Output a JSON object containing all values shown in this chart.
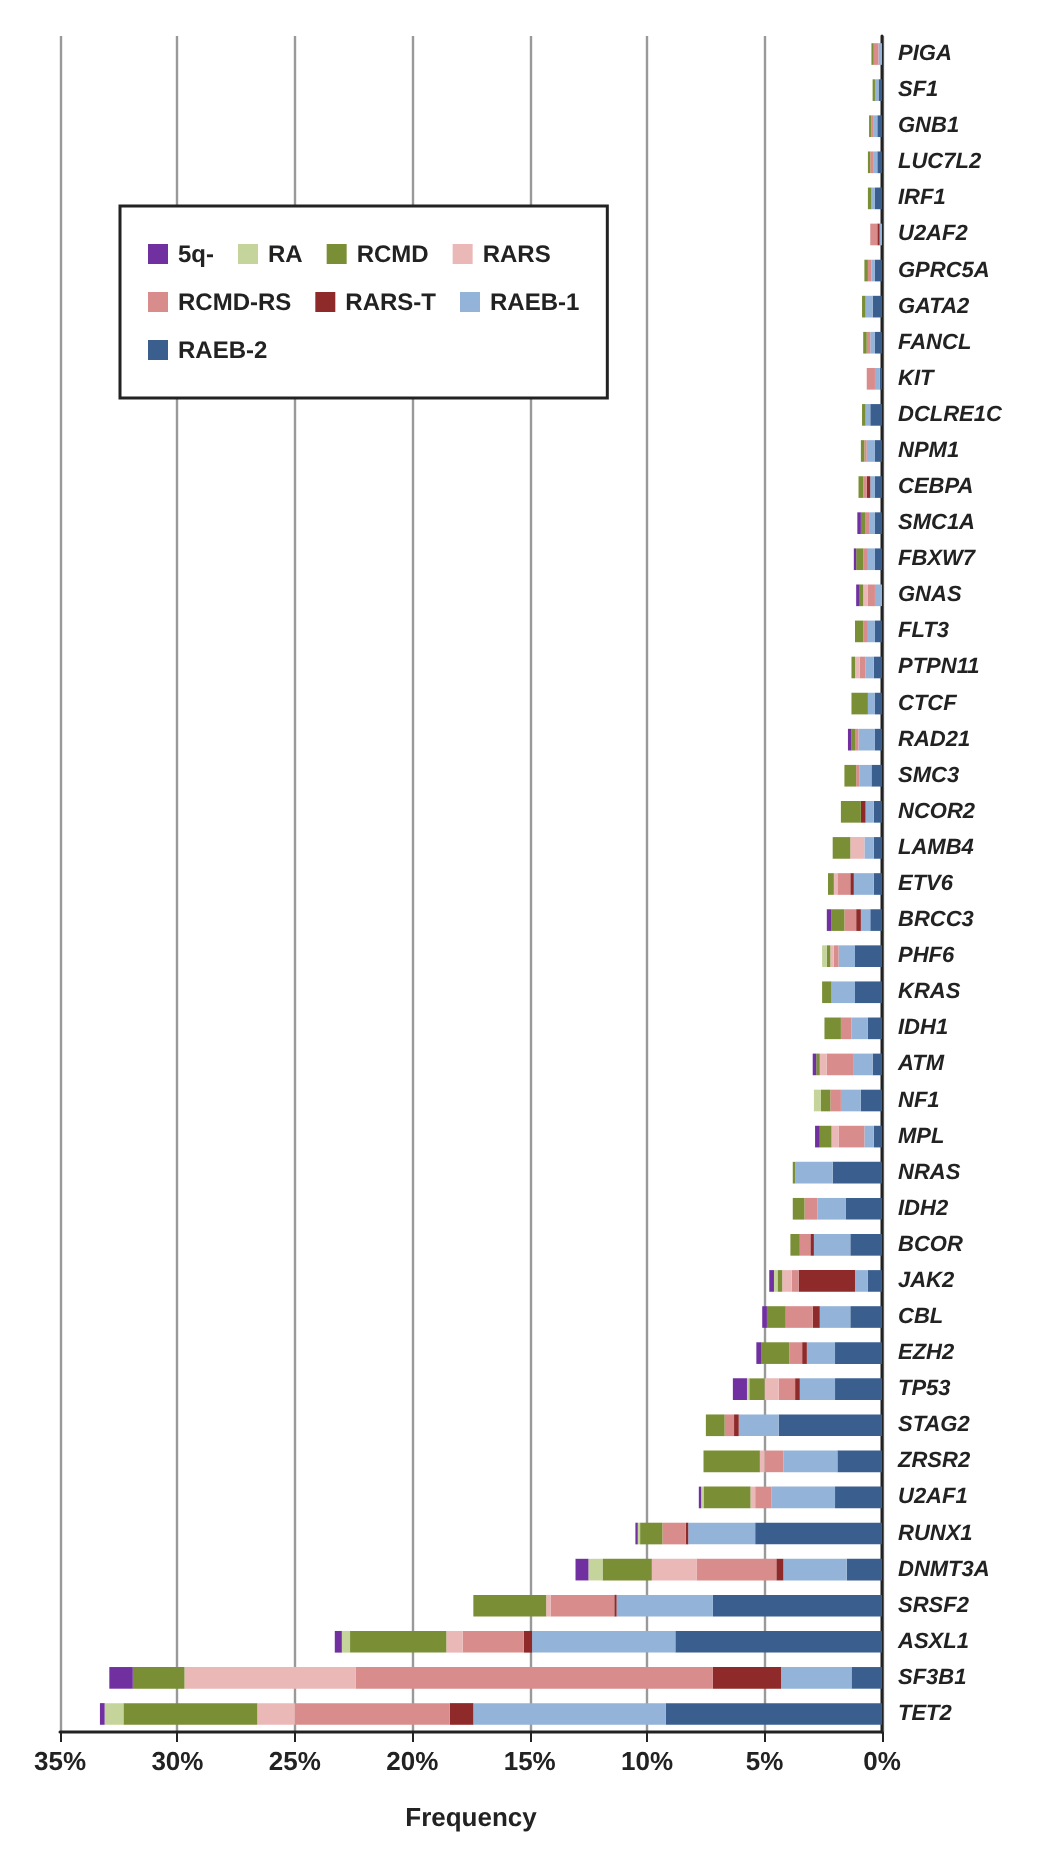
{
  "chart_data": {
    "type": "bar",
    "orientation": "horizontal",
    "stacked": true,
    "xlabel": "Frequency",
    "grid": "x",
    "legend": "top left",
    "xlim": [
      35,
      0
    ],
    "xticks": [
      {
        "value": 35,
        "label": "35%"
      },
      {
        "value": 30,
        "label": "30%"
      },
      {
        "value": 25,
        "label": "25%"
      },
      {
        "value": 20,
        "label": "20%"
      },
      {
        "value": 15,
        "label": "15%"
      },
      {
        "value": 10,
        "label": "10%"
      },
      {
        "value": 5,
        "label": "5%"
      },
      {
        "value": 0,
        "label": "0%"
      }
    ],
    "categories": [
      "PIGA",
      "SF1",
      "GNB1",
      "LUC7L2",
      "IRF1",
      "U2AF2",
      "GPRC5A",
      "GATA2",
      "FANCL",
      "KIT",
      "DCLRE1C",
      "NPM1",
      "CEBPA",
      "SMC1A",
      "FBXW7",
      "GNAS",
      "FLT3",
      "PTPN11",
      "CTCF",
      "RAD21",
      "SMC3",
      "NCOR2",
      "LAMB4",
      "ETV6",
      "BRCC3",
      "PHF6",
      "KRAS",
      "IDH1",
      "ATM",
      "NF1",
      "MPL",
      "NRAS",
      "IDH2",
      "BCOR",
      "JAK2",
      "CBL",
      "EZH2",
      "TP53",
      "STAG2",
      "ZRSR2",
      "U2AF1",
      "RUNX1",
      "DNMT3A",
      "SRSF2",
      "ASXL1",
      "SF3B1",
      "TET2"
    ],
    "series": [
      {
        "name": "RAEB-2",
        "color": "#3a5f8f",
        "values": [
          0,
          0.15,
          0.2,
          0.2,
          0.3,
          0,
          0.3,
          0.4,
          0.3,
          0.1,
          0.5,
          0.3,
          0.3,
          0.3,
          0.3,
          0,
          0.3,
          0.35,
          0.3,
          0.3,
          0.45,
          0.35,
          0.35,
          0.35,
          0.5,
          1.15,
          1.15,
          0.6,
          0.4,
          0.9,
          0.35,
          2.1,
          1.55,
          1.35,
          0.6,
          1.35,
          2.0,
          2.0,
          4.4,
          1.9,
          2.0,
          5.4,
          1.5,
          7.2,
          8.8,
          1.3,
          9.2
        ]
      },
      {
        "name": "RAEB-1",
        "color": "#93b3d8",
        "values": [
          0.15,
          0.15,
          0.15,
          0.15,
          0.15,
          0.1,
          0.15,
          0.3,
          0.2,
          0.2,
          0.2,
          0.35,
          0.2,
          0.25,
          0.3,
          0.3,
          0.3,
          0.35,
          0.3,
          0.7,
          0.5,
          0.35,
          0.4,
          0.85,
          0.4,
          0.7,
          1.0,
          0.7,
          0.8,
          0.85,
          0.4,
          1.6,
          1.2,
          1.55,
          0.55,
          1.3,
          1.2,
          1.5,
          1.7,
          2.3,
          2.7,
          2.85,
          2.7,
          4.1,
          6.1,
          3.0,
          8.2
        ]
      },
      {
        "name": "RARS-T",
        "color": "#8e2a2a",
        "values": [
          0,
          0,
          0,
          0,
          0,
          0.1,
          0,
          0,
          0,
          0,
          0,
          0,
          0.15,
          0,
          0,
          0,
          0,
          0,
          0,
          0,
          0,
          0.2,
          0,
          0.15,
          0.2,
          0,
          0,
          0,
          0,
          0,
          0,
          0,
          0,
          0.15,
          2.4,
          0.3,
          0.2,
          0.2,
          0.2,
          0,
          0,
          0.1,
          0.3,
          0.1,
          0.35,
          2.9,
          1.0
        ]
      },
      {
        "name": "RCMD-RS",
        "color": "#d98c8c",
        "values": [
          0.2,
          0,
          0.1,
          0.15,
          0,
          0.3,
          0.15,
          0,
          0.15,
          0.35,
          0,
          0.1,
          0.15,
          0.15,
          0.2,
          0.3,
          0.2,
          0.25,
          0,
          0.15,
          0.15,
          0,
          0,
          0.55,
          0.5,
          0.2,
          0,
          0.45,
          1.15,
          0.45,
          1.1,
          0,
          0.55,
          0.45,
          0.3,
          1.15,
          0.55,
          0.7,
          0.4,
          0.8,
          0.7,
          1.0,
          3.4,
          2.7,
          2.6,
          15.2,
          6.6
        ]
      },
      {
        "name": "RARS",
        "color": "#ebb8b8",
        "values": [
          0,
          0,
          0,
          0,
          0,
          0,
          0,
          0,
          0,
          0,
          0,
          0,
          0,
          0,
          0,
          0.2,
          0,
          0.2,
          0,
          0,
          0,
          0,
          0.6,
          0.15,
          0,
          0.15,
          0,
          0,
          0.3,
          0,
          0.3,
          0,
          0,
          0,
          0.4,
          0,
          0,
          0.6,
          0,
          0.2,
          0.2,
          0,
          1.9,
          0.2,
          0.7,
          7.3,
          1.6
        ]
      },
      {
        "name": "RCMD",
        "color": "#7a8f35",
        "values": [
          0.1,
          0.1,
          0.1,
          0.1,
          0.15,
          0,
          0.15,
          0.15,
          0.15,
          0,
          0.15,
          0.15,
          0.2,
          0.2,
          0.3,
          0.15,
          0.35,
          0.15,
          0.7,
          0.15,
          0.5,
          0.85,
          0.75,
          0.25,
          0.55,
          0.15,
          0.4,
          0.7,
          0.15,
          0.4,
          0.5,
          0.1,
          0.5,
          0.4,
          0.2,
          0.8,
          1.2,
          0.65,
          0.8,
          2.4,
          2.0,
          0.95,
          2.1,
          3.1,
          4.1,
          2.2,
          5.7
        ]
      },
      {
        "name": "RA",
        "color": "#c4d49a",
        "values": [
          0,
          0,
          0,
          0,
          0,
          0,
          0,
          0,
          0,
          0,
          0,
          0,
          0,
          0,
          0,
          0,
          0,
          0,
          0,
          0,
          0,
          0,
          0,
          0,
          0,
          0.2,
          0,
          0,
          0,
          0.3,
          0,
          0,
          0,
          0,
          0.15,
          0,
          0,
          0.1,
          0,
          0,
          0.1,
          0.1,
          0.6,
          0,
          0.35,
          0,
          0.8
        ]
      },
      {
        "name": "5q-",
        "color": "#7030a0",
        "values": [
          0,
          0,
          0,
          0,
          0,
          0,
          0,
          0,
          0,
          0,
          0,
          0,
          0,
          0.15,
          0.1,
          0.15,
          0,
          0,
          0,
          0.15,
          0,
          0,
          0,
          0,
          0.2,
          0,
          0,
          0,
          0.15,
          0,
          0.2,
          0,
          0,
          0,
          0.2,
          0.2,
          0.2,
          0.6,
          0,
          0,
          0.1,
          0.1,
          0.55,
          0,
          0.3,
          1.0,
          0.2
        ]
      }
    ]
  }
}
